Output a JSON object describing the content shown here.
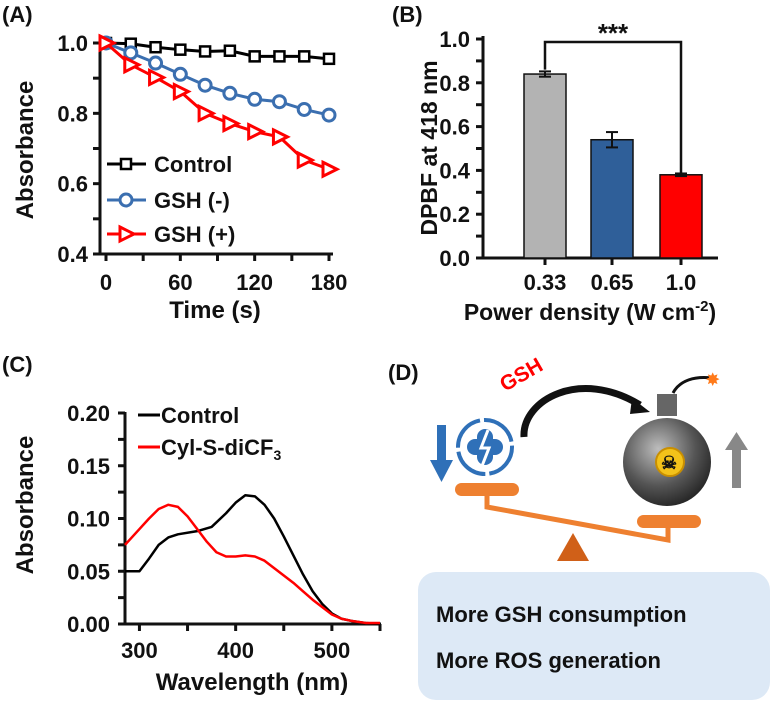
{
  "panels": {
    "a": "(A)",
    "b": "(B)",
    "c": "(C)",
    "d": "(D)"
  },
  "chart_data": [
    {
      "type": "line",
      "title": "",
      "xlabel": "Time (s)",
      "ylabel": "Absorbance",
      "xlim": [
        0,
        180
      ],
      "ylim": [
        0.4,
        1.0
      ],
      "xticks": [
        0,
        60,
        120,
        180
      ],
      "yticks": [
        "0.4",
        "0.6",
        "0.8",
        "1.0"
      ],
      "x": [
        0,
        20,
        40,
        60,
        80,
        100,
        120,
        140,
        160,
        180
      ],
      "series": [
        {
          "name": "Control",
          "color": "#000000",
          "marker": "square",
          "values": [
            1.0,
            0.998,
            0.988,
            0.981,
            0.976,
            0.978,
            0.962,
            0.962,
            0.962,
            0.955
          ]
        },
        {
          "name": "GSH (-)",
          "color": "#3b6fb0",
          "marker": "circle",
          "values": [
            1.0,
            0.972,
            0.943,
            0.911,
            0.88,
            0.857,
            0.84,
            0.833,
            0.811,
            0.795
          ]
        },
        {
          "name": "GSH (+)",
          "color": "#ff0000",
          "marker": "triangle-right",
          "values": [
            1.0,
            0.938,
            0.902,
            0.862,
            0.8,
            0.771,
            0.748,
            0.733,
            0.667,
            0.641
          ]
        }
      ],
      "legend": "bottom-left"
    },
    {
      "type": "bar",
      "xlabel": "Power density (W cm",
      "xlabel_sup": "-2",
      "xlabel_end": ")",
      "ylabel": "DPBF at 418 nm",
      "ylim": [
        0,
        1.0
      ],
      "yticks": [
        "0.0",
        "0.2",
        "0.4",
        "0.6",
        "0.8",
        "1.0"
      ],
      "categories": [
        "0.33",
        "0.65",
        "1.0"
      ],
      "values": [
        0.84,
        0.54,
        0.38
      ],
      "errors": [
        0.012,
        0.035,
        0.006
      ],
      "colors": [
        "#b3b3b3",
        "#2f5f99",
        "#ff0000"
      ],
      "annotation": "***"
    },
    {
      "type": "line",
      "xlabel": "Wavelength (nm)",
      "ylabel": "Absorbance",
      "xlim": [
        285,
        550
      ],
      "ylim": [
        0,
        0.2
      ],
      "xticks": [
        300,
        400,
        500
      ],
      "yticks": [
        "0.00",
        "0.05",
        "0.10",
        "0.15",
        "0.20"
      ],
      "series": [
        {
          "name": "Control",
          "color": "#000000",
          "x": [
            285,
            300,
            310,
            320,
            330,
            340,
            360,
            375,
            390,
            400,
            410,
            420,
            430,
            440,
            450,
            460,
            470,
            480,
            490,
            500,
            510,
            520,
            535,
            550
          ],
          "values": [
            0.05,
            0.05,
            0.062,
            0.075,
            0.082,
            0.085,
            0.088,
            0.092,
            0.105,
            0.115,
            0.122,
            0.121,
            0.113,
            0.1,
            0.083,
            0.065,
            0.047,
            0.031,
            0.019,
            0.01,
            0.005,
            0.003,
            0.001,
            0.0
          ]
        },
        {
          "name": "Cyl-S-diCF",
          "name_sub": "3",
          "color": "#ff0000",
          "x": [
            285,
            300,
            310,
            320,
            330,
            340,
            350,
            360,
            370,
            380,
            390,
            400,
            410,
            420,
            430,
            440,
            450,
            460,
            470,
            480,
            490,
            500,
            510,
            520,
            535,
            550
          ],
          "values": [
            0.075,
            0.09,
            0.1,
            0.109,
            0.113,
            0.111,
            0.102,
            0.09,
            0.078,
            0.068,
            0.064,
            0.064,
            0.065,
            0.064,
            0.06,
            0.053,
            0.046,
            0.039,
            0.031,
            0.023,
            0.016,
            0.009,
            0.005,
            0.003,
            0.001,
            0.001
          ]
        }
      ],
      "legend": "top-left"
    }
  ],
  "diagram": {
    "gsh_label": "GSH",
    "line1": "More GSH consumption",
    "line2": "More ROS generation"
  }
}
